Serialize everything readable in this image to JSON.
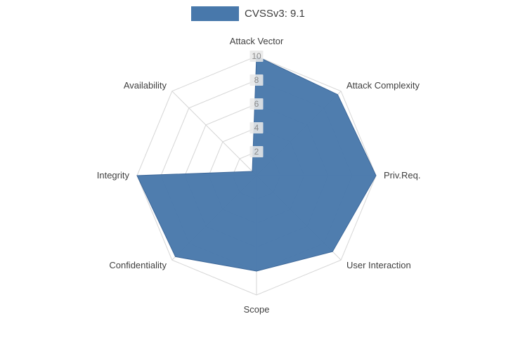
{
  "legend": {
    "label": "CVSSv3: 9.1"
  },
  "chart_data": {
    "type": "radar",
    "title": "",
    "categories": [
      "Attack Vector",
      "Attack Complexity",
      "Priv.Req.",
      "User Interaction",
      "Scope",
      "Confidentiality",
      "Integrity",
      "Availability"
    ],
    "series": [
      {
        "name": "CVSSv3: 9.1",
        "values": [
          10,
          9.6,
          10,
          9,
          8,
          9.6,
          10,
          0.5
        ]
      }
    ],
    "radial_ticks": [
      2,
      4,
      6,
      8,
      10
    ],
    "rlim": [
      0,
      10
    ],
    "grid": true,
    "legend_position": "top-center",
    "colors": {
      "fill": "#4878ab",
      "stroke": "#3d689a",
      "grid": "#d6d6d6",
      "tick_bg": "#e8e8e8",
      "tick_text": "#8a8a8a",
      "label_text": "#3f3f3f"
    }
  }
}
